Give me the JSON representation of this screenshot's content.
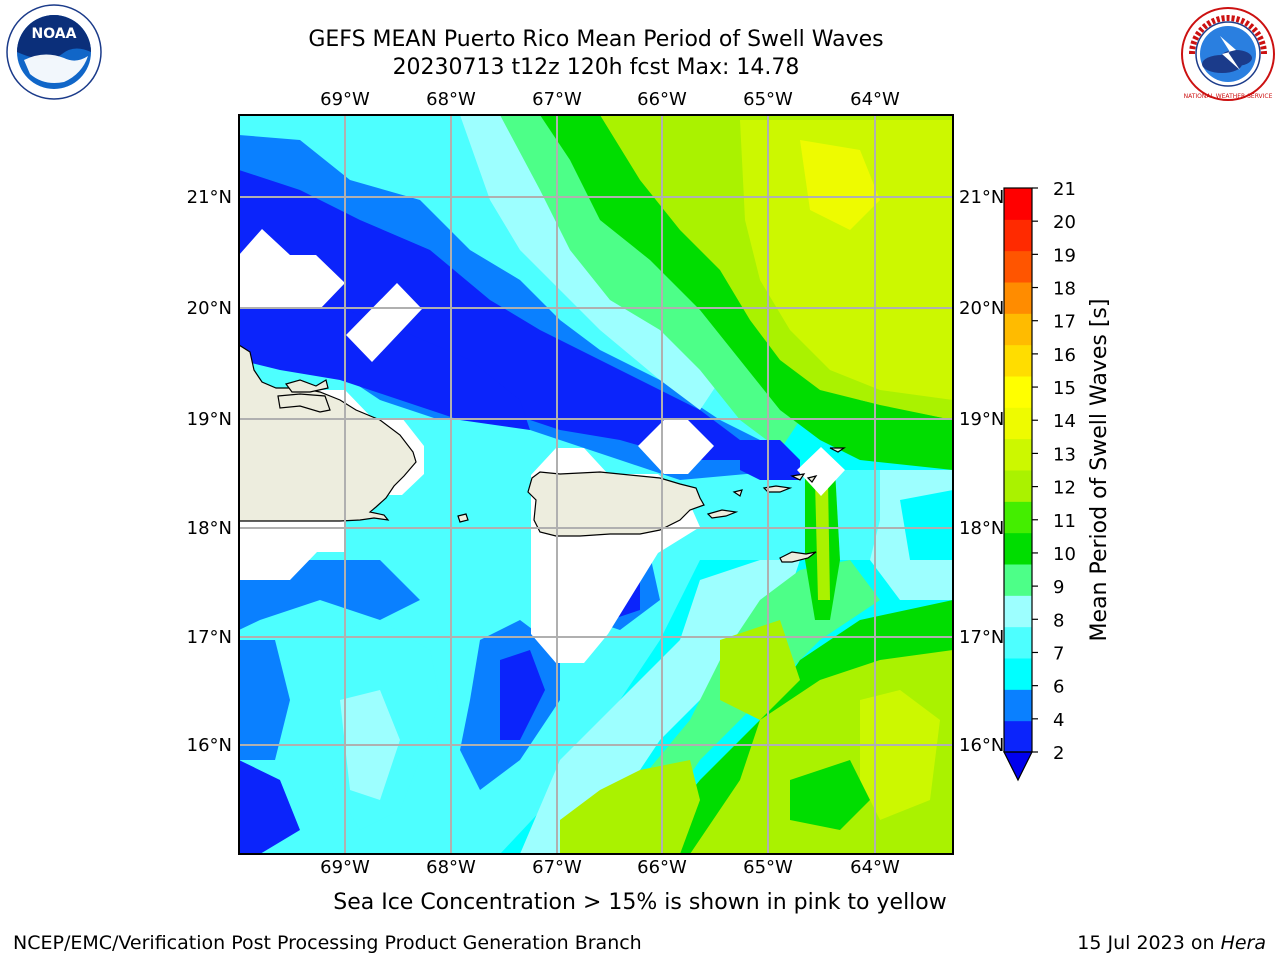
{
  "header": {
    "title": "GEFS MEAN Puerto Rico Mean Period of Swell Waves",
    "subtitle": "20230713 t12z 120h fcst   Max: 14.78"
  },
  "logos": {
    "noaa_text": "NOAA",
    "nws_text": "NATIONAL WEATHER SERVICE"
  },
  "map": {
    "lon_labels": [
      "69°W",
      "68°W",
      "67°W",
      "66°W",
      "65°W",
      "64°W"
    ],
    "lat_labels": [
      "21°N",
      "20°N",
      "19°N",
      "18°N",
      "17°N",
      "16°N"
    ],
    "lon_range": [
      -70.0,
      -63.25
    ],
    "lat_range": [
      15.0,
      21.75
    ]
  },
  "colorbar": {
    "label": "Mean Period of Swell Waves [s]",
    "ticks": [
      "2",
      "4",
      "6",
      "7",
      "8",
      "9",
      "10",
      "11",
      "12",
      "13",
      "14",
      "15",
      "16",
      "17",
      "18",
      "19",
      "20",
      "21"
    ],
    "colors": [
      "#0b24fb",
      "#0a80ff",
      "#00ffff",
      "#4dffff",
      "#9dffff",
      "#4dff88",
      "#00dd00",
      "#44ee00",
      "#aaf200",
      "#ccf800",
      "#eefb00",
      "#ffff00",
      "#ffdd00",
      "#ffbb00",
      "#ff8c00",
      "#ff5500",
      "#ff2a00",
      "#ff0000"
    ],
    "extend_color": "#0000ee"
  },
  "footer": {
    "note": "Sea Ice Concentration > 15% is shown in pink to yellow",
    "left": "NCEP/EMC/Verification Post Processing Product Generation Branch",
    "right_date": "15 Jul 2023 on ",
    "right_host": "Hera"
  }
}
